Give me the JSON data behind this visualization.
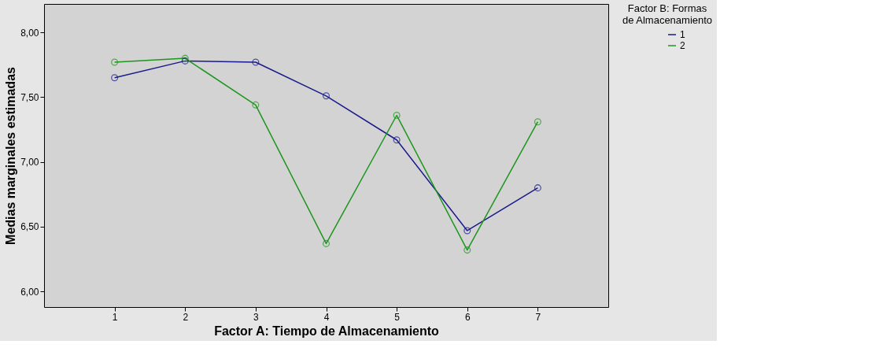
{
  "chart_data": {
    "type": "line",
    "xlabel": "Factor A: Tiempo de Almacenamiento",
    "ylabel": "Medias marginales estimadas",
    "legend_title": "Factor B: Formas de Almacenamiento",
    "categories": [
      "1",
      "2",
      "3",
      "4",
      "5",
      "6",
      "7"
    ],
    "series": [
      {
        "name": "1",
        "color": "#1a1a8c",
        "values": [
          7.65,
          7.78,
          7.77,
          7.51,
          7.17,
          6.47,
          6.8
        ]
      },
      {
        "name": "2",
        "color": "#1e961e",
        "values": [
          7.77,
          7.8,
          7.44,
          6.37,
          7.36,
          6.32,
          7.31
        ]
      }
    ],
    "ylim": [
      5.88,
      8.22
    ],
    "yticks": [
      {
        "value": 6,
        "label": "6,00"
      },
      {
        "value": 6.5,
        "label": "6,50"
      },
      {
        "value": 7,
        "label": "7,00"
      },
      {
        "value": 7.5,
        "label": "7,50"
      },
      {
        "value": 8,
        "label": "8,00"
      }
    ],
    "grid": false,
    "legend": "top right",
    "marker": "circle",
    "line_style": "solid"
  }
}
